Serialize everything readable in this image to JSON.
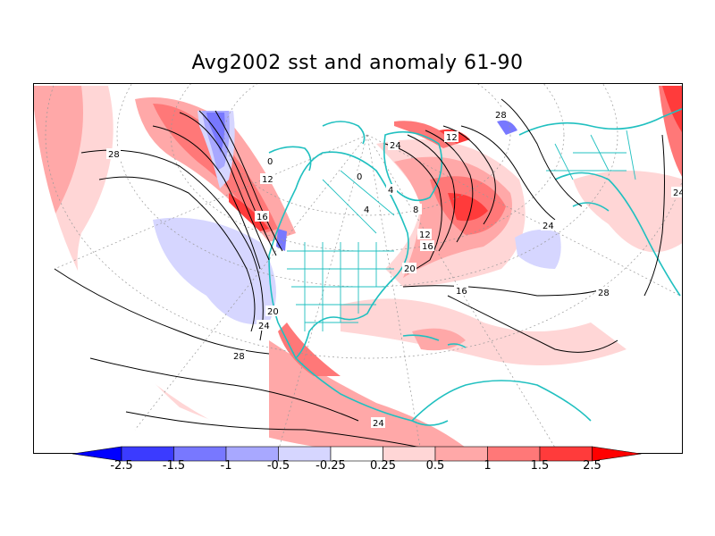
{
  "title": "Avg2002 sst and anomaly 61-90",
  "contour_labels": [
    "28",
    "12",
    "16",
    "20",
    "24",
    "28",
    "4",
    "0",
    "4",
    "8",
    "12",
    "16",
    "20",
    "24",
    "28",
    "24",
    "24",
    "0",
    "12",
    "16",
    "28",
    "24"
  ],
  "colorbar": {
    "levels": [
      "-2.5",
      "-1.5",
      "-1",
      "-0.5",
      "-0.25",
      "0.25",
      "0.5",
      "1",
      "1.5",
      "2.5"
    ],
    "colors": [
      "#0000ff",
      "#3b3bff",
      "#7878ff",
      "#a8a8ff",
      "#d6d6ff",
      "#ffffff",
      "#ffd6d6",
      "#ffa8a8",
      "#ff7878",
      "#ff3b3b",
      "#ff0000"
    ]
  },
  "colors": {
    "coastline": "#20c0c0",
    "contour": "#000000",
    "grid": "#999999"
  }
}
